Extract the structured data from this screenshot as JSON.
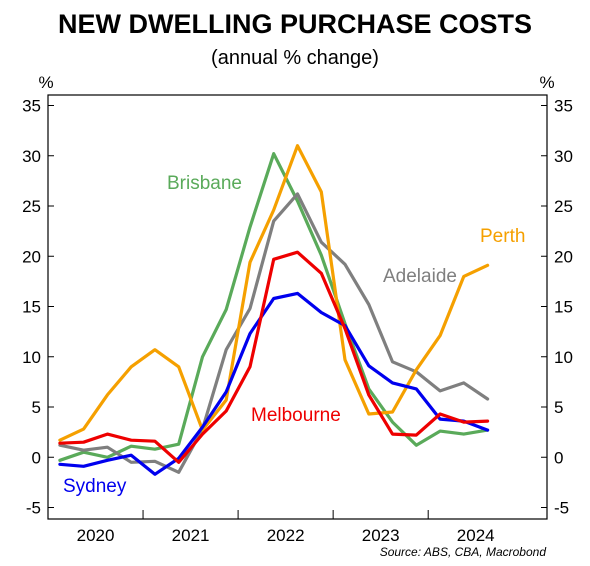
{
  "chart_data": {
    "type": "line",
    "title": "NEW DWELLING PURCHASE COSTS",
    "subtitle": "(annual % change)",
    "ylabel_left": "%",
    "ylabel_right": "%",
    "ylim": [
      -5,
      35
    ],
    "yticks": [
      -5,
      0,
      5,
      10,
      15,
      20,
      25,
      30,
      35
    ],
    "xlim": [
      2019.5,
      2024.75
    ],
    "xtick_labels": [
      "2020",
      "2021",
      "2022",
      "2023",
      "2024"
    ],
    "xtick_positions": [
      2020.0,
      2021.0,
      2022.0,
      2023.0,
      2024.0
    ],
    "year_dividers": [
      2020.5,
      2021.5,
      2022.5,
      2023.5
    ],
    "grid": false,
    "legend": "none",
    "source": "Source: ABS, CBA, Macrobond",
    "x": [
      2019.625,
      2019.875,
      2020.125,
      2020.375,
      2020.625,
      2020.875,
      2021.125,
      2021.375,
      2021.625,
      2021.875,
      2022.125,
      2022.375,
      2022.625,
      2022.875,
      2023.125,
      2023.375,
      2023.625,
      2023.875,
      2024.125,
      2024.375
    ],
    "series": [
      {
        "name": "Sydney",
        "color": "#0000ee",
        "values": [
          -0.7,
          -0.9,
          -0.3,
          0.2,
          -1.7,
          -0.1,
          3.0,
          6.5,
          12.3,
          15.8,
          16.3,
          14.4,
          13.1,
          9.1,
          7.4,
          6.8,
          3.8,
          3.6,
          2.7,
          null
        ]
      },
      {
        "name": "Melbourne",
        "color": "#ee0000",
        "values": [
          1.4,
          1.5,
          2.3,
          1.7,
          1.6,
          -0.5,
          2.3,
          4.6,
          9.0,
          19.7,
          20.4,
          18.3,
          12.8,
          6.2,
          2.3,
          2.2,
          4.3,
          3.5,
          3.6,
          null
        ]
      },
      {
        "name": "Brisbane",
        "color": "#5aaa5a",
        "values": [
          -0.3,
          0.5,
          0.0,
          1.1,
          0.8,
          1.3,
          10.0,
          14.7,
          22.9,
          30.2,
          25.5,
          20.1,
          13.3,
          6.8,
          3.5,
          1.2,
          2.6,
          2.3,
          2.7,
          null
        ]
      },
      {
        "name": "Adelaide",
        "color": "#7f7f7f",
        "values": [
          1.2,
          0.7,
          1.0,
          -0.5,
          -0.4,
          -1.5,
          2.8,
          10.7,
          14.8,
          23.5,
          26.2,
          21.4,
          19.2,
          15.2,
          9.5,
          8.5,
          6.6,
          7.4,
          5.8,
          null
        ]
      },
      {
        "name": "Perth",
        "color": "#f5a000",
        "values": [
          1.7,
          2.8,
          6.2,
          9.0,
          10.7,
          9.0,
          2.7,
          5.7,
          19.4,
          24.6,
          31.0,
          26.4,
          9.7,
          4.3,
          4.5,
          8.7,
          12.1,
          18.0,
          19.1,
          null
        ]
      }
    ]
  }
}
